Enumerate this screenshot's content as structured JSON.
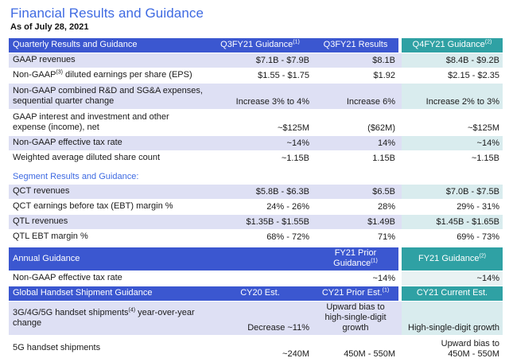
{
  "title": "Financial Results and Guidance",
  "as_of": "As of July 28, 2021",
  "colors": {
    "accent_blue_header": "#3b57d0",
    "accent_teal_header": "#2fa1a4",
    "title_blue": "#3e6ae2",
    "row_stripe_lavender": "#dee0f4",
    "row_stripe_teal_tint": "#d9ecee",
    "text": "#1a1a1a"
  },
  "quarterly": {
    "header": {
      "label": "Quarterly Results and Guidance",
      "c2": "Q3FY21 Guidance",
      "c2_sup": "(1)",
      "c3": "Q3FY21 Results",
      "c4": "Q4FY21 Guidance",
      "c4_sup": "(2)"
    },
    "rows": [
      {
        "label": "GAAP revenues",
        "v2": "$7.1B - $7.9B",
        "v3": "$8.1B",
        "v4": "$8.4B - $9.2B"
      },
      {
        "label_pre": "Non-GAAP",
        "label_sup": "(3)",
        "label_post": " diluted earnings per share (EPS)",
        "v2": "$1.55 - $1.75",
        "v3": "$1.92",
        "v4": "$2.15 - $2.35"
      },
      {
        "label": "Non-GAAP combined R&D and SG&A expenses, sequential quarter change",
        "v2": "Increase 3% to 4%",
        "v3": "Increase 6%",
        "v4": "Increase 2% to 3%"
      },
      {
        "label": "GAAP interest and investment and other expense (income), net",
        "v2": "~$125M",
        "v3": "($62M)",
        "v4": "~$125M"
      },
      {
        "label": "Non-GAAP effective tax rate",
        "v2": "~14%",
        "v3": "14%",
        "v4": "~14%"
      },
      {
        "label": "Weighted average diluted share count",
        "v2": "~1.15B",
        "v3": "1.15B",
        "v4": "~1.15B"
      }
    ]
  },
  "segment": {
    "heading": "Segment Results and Guidance:",
    "rows": [
      {
        "label": "QCT revenues",
        "v2": "$5.8B - $6.3B",
        "v3": "$6.5B",
        "v4": "$7.0B - $7.5B"
      },
      {
        "label": "QCT earnings before tax (EBT) margin %",
        "v2": "24% - 26%",
        "v3": "28%",
        "v4": "29% - 31%"
      },
      {
        "label": "QTL revenues",
        "v2": "$1.35B - $1.55B",
        "v3": "$1.49B",
        "v4": "$1.45B - $1.65B"
      },
      {
        "label": "QTL EBT margin %",
        "v2": "68% - 72%",
        "v3": "71%",
        "v4": "69% - 73%"
      }
    ]
  },
  "annual": {
    "header": {
      "label": "Annual Guidance",
      "c3": "FY21 Prior Guidance",
      "c3_sup": "(1)",
      "c4": "FY21 Guidance",
      "c4_sup": "(2)"
    },
    "rows": [
      {
        "label": "Non-GAAP effective tax rate",
        "v2": "",
        "v3": "~14%",
        "v4": "~14%"
      }
    ]
  },
  "handset": {
    "header": {
      "label": "Global Handset Shipment Guidance",
      "c2": "CY20 Est.",
      "c3": "CY21 Prior Est.",
      "c3_sup": "(1)",
      "c4": "CY21 Current Est."
    },
    "rows": [
      {
        "label_pre": "3G/4G/5G handset shipments",
        "label_sup": "(4)",
        "label_post": " year-over-year change",
        "v2": "Decrease ~11%",
        "v3_l1": "Upward bias to",
        "v3_l2": "high-single-digit growth",
        "v4": "High-single-digit growth"
      },
      {
        "label": "5G handset shipments",
        "v2": "~240M",
        "v3": "450M - 550M",
        "v4_l1": "Upward bias to",
        "v4_l2": "450M - 550M"
      }
    ]
  }
}
